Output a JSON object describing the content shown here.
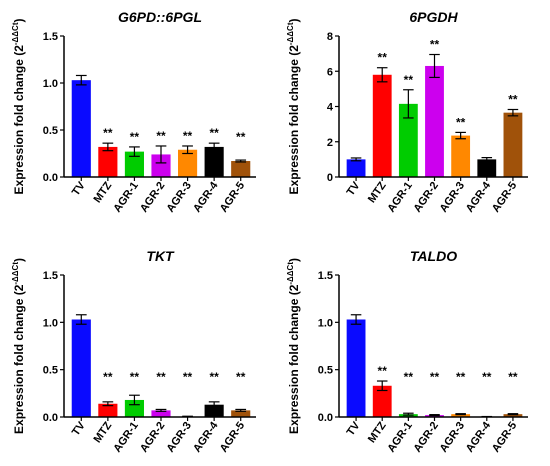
{
  "chart_data": [
    {
      "type": "bar",
      "title": "G6PD::6PGL",
      "ylabel": "Expression fold change (2",
      "ylabel_sup": "-ΔΔCt",
      "ylabel_close": ")",
      "ylim": [
        0,
        1.5
      ],
      "yticks": [
        "0.0",
        "0.5",
        "1.0",
        "1.5"
      ],
      "categories": [
        "TV",
        "MTZ",
        "AGR-1",
        "AGR-2",
        "AGR-3",
        "AGR-4",
        "AGR-5"
      ],
      "values": [
        1.03,
        0.32,
        0.27,
        0.24,
        0.29,
        0.32,
        0.17
      ],
      "errors": [
        0.05,
        0.04,
        0.05,
        0.09,
        0.04,
        0.04,
        0.01
      ],
      "annotations": [
        "",
        "**",
        "**",
        "**",
        "**",
        "**",
        "**"
      ],
      "colors": [
        "#0a0aff",
        "#ff0000",
        "#00cc00",
        "#cc00ee",
        "#ff8800",
        "#000000",
        "#a0520a"
      ]
    },
    {
      "type": "bar",
      "title": "6PGDH",
      "ylabel": "Expression fold change (2",
      "ylabel_sup": "-ΔΔCt",
      "ylabel_close": ")",
      "ylim": [
        0,
        8
      ],
      "yticks": [
        "0",
        "2",
        "4",
        "6",
        "8"
      ],
      "categories": [
        "TV",
        "MTZ",
        "AGR-1",
        "AGR-2",
        "AGR-3",
        "AGR-4",
        "AGR-5"
      ],
      "values": [
        1.0,
        5.8,
        4.15,
        6.3,
        2.35,
        1.0,
        3.65
      ],
      "errors": [
        0.08,
        0.4,
        0.8,
        0.65,
        0.18,
        0.1,
        0.18
      ],
      "annotations": [
        "",
        "**",
        "**",
        "**",
        "**",
        "",
        "**"
      ],
      "colors": [
        "#0a0aff",
        "#ff0000",
        "#00cc00",
        "#cc00ee",
        "#ff8800",
        "#000000",
        "#a0520a"
      ]
    },
    {
      "type": "bar",
      "title": "TKT",
      "ylabel": "Expression fold change (2",
      "ylabel_sup": "-ΔΔCt",
      "ylabel_close": ")",
      "ylim": [
        0,
        1.5
      ],
      "yticks": [
        "0.0",
        "0.5",
        "1.0",
        "1.5"
      ],
      "categories": [
        "TV",
        "MTZ",
        "AGR-1",
        "AGR-2",
        "AGR-3",
        "AGR-4",
        "AGR-5"
      ],
      "values": [
        1.03,
        0.14,
        0.18,
        0.07,
        0.005,
        0.13,
        0.07
      ],
      "errors": [
        0.05,
        0.02,
        0.05,
        0.01,
        0.003,
        0.03,
        0.01
      ],
      "annotations": [
        "",
        "**",
        "**",
        "**",
        "**",
        "**",
        "**"
      ],
      "colors": [
        "#0a0aff",
        "#ff0000",
        "#00cc00",
        "#cc00ee",
        "#ff8800",
        "#000000",
        "#a0520a"
      ]
    },
    {
      "type": "bar",
      "title": "TALDO",
      "ylabel": "Expression fold change (2",
      "ylabel_sup": "-ΔΔCt",
      "ylabel_close": ")",
      "ylim": [
        0,
        1.5
      ],
      "yticks": [
        "0.0",
        "0.5",
        "1.0",
        "1.5"
      ],
      "categories": [
        "TV",
        "MTZ",
        "AGR-1",
        "AGR-2",
        "AGR-3",
        "AGR-4",
        "AGR-5"
      ],
      "values": [
        1.03,
        0.33,
        0.03,
        0.02,
        0.03,
        0.003,
        0.03
      ],
      "errors": [
        0.05,
        0.05,
        0.01,
        0.005,
        0.005,
        0.002,
        0.005
      ],
      "annotations": [
        "",
        "**",
        "**",
        "**",
        "**",
        "**",
        "**"
      ],
      "colors": [
        "#0a0aff",
        "#ff0000",
        "#00cc00",
        "#cc00ee",
        "#ff8800",
        "#000000",
        "#a0520a"
      ]
    }
  ]
}
